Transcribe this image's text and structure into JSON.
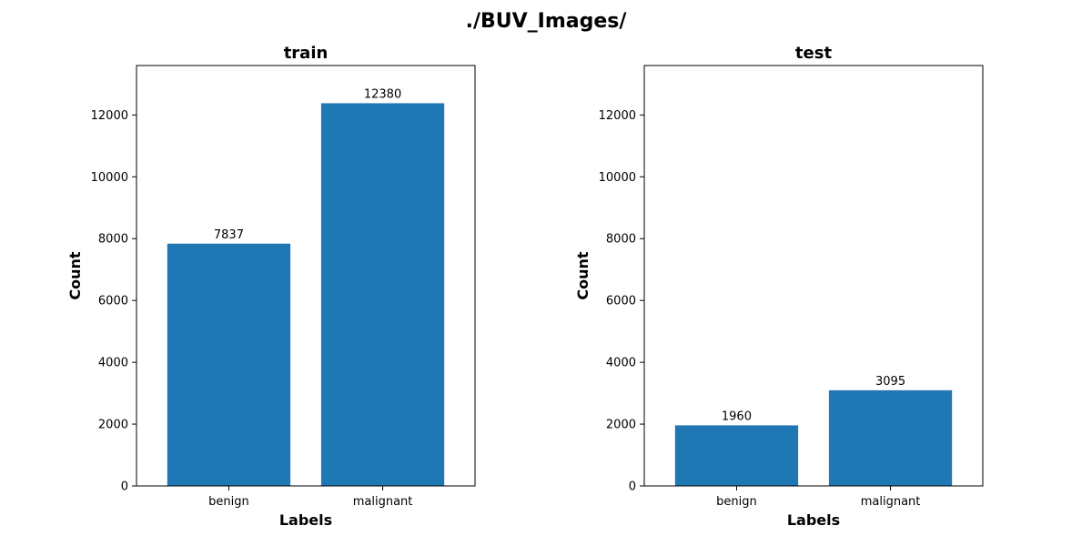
{
  "figure": {
    "suptitle": "./BUV_Images/"
  },
  "chart_data": [
    {
      "type": "bar",
      "title": "train",
      "xlabel": "Labels",
      "ylabel": "Count",
      "categories": [
        "benign",
        "malignant"
      ],
      "values": [
        7837,
        12380
      ],
      "data_labels": [
        "7837",
        "12380"
      ],
      "ylim": [
        0,
        13600
      ],
      "yticks": [
        0,
        2000,
        4000,
        6000,
        8000,
        10000,
        12000
      ],
      "ytick_labels": [
        "0",
        "2000",
        "4000",
        "6000",
        "8000",
        "10000",
        "12000"
      ],
      "bar_color": "#1f77b4",
      "grid": false
    },
    {
      "type": "bar",
      "title": "test",
      "xlabel": "Labels",
      "ylabel": "Count",
      "categories": [
        "benign",
        "malignant"
      ],
      "values": [
        1960,
        3095
      ],
      "data_labels": [
        "1960",
        "3095"
      ],
      "ylim": [
        0,
        13600
      ],
      "yticks": [
        0,
        2000,
        4000,
        6000,
        8000,
        10000,
        12000
      ],
      "ytick_labels": [
        "0",
        "2000",
        "4000",
        "6000",
        "8000",
        "10000",
        "12000"
      ],
      "bar_color": "#1f77b4",
      "grid": false
    }
  ]
}
